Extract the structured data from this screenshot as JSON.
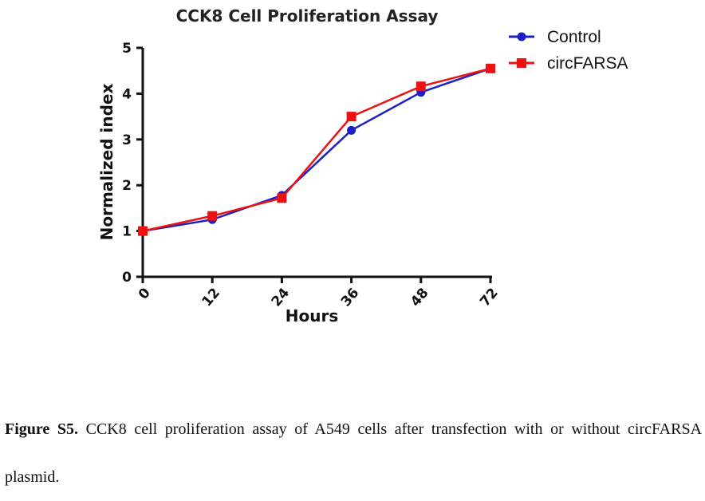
{
  "chart_data": {
    "type": "line",
    "title": "CCK8 Cell Proliferation Assay",
    "xlabel": "Hours",
    "ylabel": "Normalized index",
    "categories": [
      "0",
      "12",
      "24",
      "36",
      "48",
      "72"
    ],
    "ylim": [
      0,
      5
    ],
    "yticks": [
      "0",
      "1",
      "2",
      "3",
      "4",
      "5"
    ],
    "grid": false,
    "legend_position": "top-right",
    "series": [
      {
        "name": "Control",
        "color": "#1a20c4",
        "marker": "circle",
        "values": [
          1.0,
          1.25,
          1.78,
          3.2,
          4.03,
          4.55
        ]
      },
      {
        "name": "circFARSA",
        "color": "#ee1111",
        "marker": "square",
        "values": [
          1.0,
          1.33,
          1.72,
          3.5,
          4.16,
          4.55
        ]
      }
    ]
  },
  "caption": {
    "label": "Figure S5.",
    "text": "CCK8 cell proliferation assay of A549 cells after transfection with or without circFARSA plasmid."
  }
}
